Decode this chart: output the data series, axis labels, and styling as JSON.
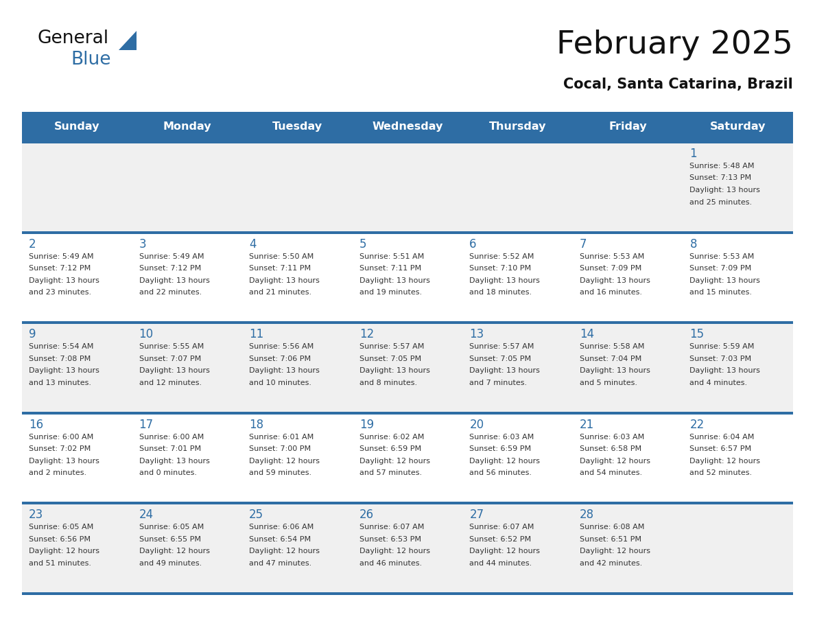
{
  "title": "February 2025",
  "subtitle": "Cocal, Santa Catarina, Brazil",
  "days_of_week": [
    "Sunday",
    "Monday",
    "Tuesday",
    "Wednesday",
    "Thursday",
    "Friday",
    "Saturday"
  ],
  "header_bg": "#2e6da4",
  "header_text_color": "#ffffff",
  "row_bg_odd": "#f0f0f0",
  "row_bg_even": "#ffffff",
  "separator_color": "#2e6da4",
  "day_number_color": "#2e6da4",
  "text_color": "#333333",
  "bg_color": "#ffffff",
  "calendar_data": [
    [
      {
        "day": null,
        "info": ""
      },
      {
        "day": null,
        "info": ""
      },
      {
        "day": null,
        "info": ""
      },
      {
        "day": null,
        "info": ""
      },
      {
        "day": null,
        "info": ""
      },
      {
        "day": null,
        "info": ""
      },
      {
        "day": 1,
        "info": "Sunrise: 5:48 AM\nSunset: 7:13 PM\nDaylight: 13 hours\nand 25 minutes."
      }
    ],
    [
      {
        "day": 2,
        "info": "Sunrise: 5:49 AM\nSunset: 7:12 PM\nDaylight: 13 hours\nand 23 minutes."
      },
      {
        "day": 3,
        "info": "Sunrise: 5:49 AM\nSunset: 7:12 PM\nDaylight: 13 hours\nand 22 minutes."
      },
      {
        "day": 4,
        "info": "Sunrise: 5:50 AM\nSunset: 7:11 PM\nDaylight: 13 hours\nand 21 minutes."
      },
      {
        "day": 5,
        "info": "Sunrise: 5:51 AM\nSunset: 7:11 PM\nDaylight: 13 hours\nand 19 minutes."
      },
      {
        "day": 6,
        "info": "Sunrise: 5:52 AM\nSunset: 7:10 PM\nDaylight: 13 hours\nand 18 minutes."
      },
      {
        "day": 7,
        "info": "Sunrise: 5:53 AM\nSunset: 7:09 PM\nDaylight: 13 hours\nand 16 minutes."
      },
      {
        "day": 8,
        "info": "Sunrise: 5:53 AM\nSunset: 7:09 PM\nDaylight: 13 hours\nand 15 minutes."
      }
    ],
    [
      {
        "day": 9,
        "info": "Sunrise: 5:54 AM\nSunset: 7:08 PM\nDaylight: 13 hours\nand 13 minutes."
      },
      {
        "day": 10,
        "info": "Sunrise: 5:55 AM\nSunset: 7:07 PM\nDaylight: 13 hours\nand 12 minutes."
      },
      {
        "day": 11,
        "info": "Sunrise: 5:56 AM\nSunset: 7:06 PM\nDaylight: 13 hours\nand 10 minutes."
      },
      {
        "day": 12,
        "info": "Sunrise: 5:57 AM\nSunset: 7:05 PM\nDaylight: 13 hours\nand 8 minutes."
      },
      {
        "day": 13,
        "info": "Sunrise: 5:57 AM\nSunset: 7:05 PM\nDaylight: 13 hours\nand 7 minutes."
      },
      {
        "day": 14,
        "info": "Sunrise: 5:58 AM\nSunset: 7:04 PM\nDaylight: 13 hours\nand 5 minutes."
      },
      {
        "day": 15,
        "info": "Sunrise: 5:59 AM\nSunset: 7:03 PM\nDaylight: 13 hours\nand 4 minutes."
      }
    ],
    [
      {
        "day": 16,
        "info": "Sunrise: 6:00 AM\nSunset: 7:02 PM\nDaylight: 13 hours\nand 2 minutes."
      },
      {
        "day": 17,
        "info": "Sunrise: 6:00 AM\nSunset: 7:01 PM\nDaylight: 13 hours\nand 0 minutes."
      },
      {
        "day": 18,
        "info": "Sunrise: 6:01 AM\nSunset: 7:00 PM\nDaylight: 12 hours\nand 59 minutes."
      },
      {
        "day": 19,
        "info": "Sunrise: 6:02 AM\nSunset: 6:59 PM\nDaylight: 12 hours\nand 57 minutes."
      },
      {
        "day": 20,
        "info": "Sunrise: 6:03 AM\nSunset: 6:59 PM\nDaylight: 12 hours\nand 56 minutes."
      },
      {
        "day": 21,
        "info": "Sunrise: 6:03 AM\nSunset: 6:58 PM\nDaylight: 12 hours\nand 54 minutes."
      },
      {
        "day": 22,
        "info": "Sunrise: 6:04 AM\nSunset: 6:57 PM\nDaylight: 12 hours\nand 52 minutes."
      }
    ],
    [
      {
        "day": 23,
        "info": "Sunrise: 6:05 AM\nSunset: 6:56 PM\nDaylight: 12 hours\nand 51 minutes."
      },
      {
        "day": 24,
        "info": "Sunrise: 6:05 AM\nSunset: 6:55 PM\nDaylight: 12 hours\nand 49 minutes."
      },
      {
        "day": 25,
        "info": "Sunrise: 6:06 AM\nSunset: 6:54 PM\nDaylight: 12 hours\nand 47 minutes."
      },
      {
        "day": 26,
        "info": "Sunrise: 6:07 AM\nSunset: 6:53 PM\nDaylight: 12 hours\nand 46 minutes."
      },
      {
        "day": 27,
        "info": "Sunrise: 6:07 AM\nSunset: 6:52 PM\nDaylight: 12 hours\nand 44 minutes."
      },
      {
        "day": 28,
        "info": "Sunrise: 6:08 AM\nSunset: 6:51 PM\nDaylight: 12 hours\nand 42 minutes."
      },
      {
        "day": null,
        "info": ""
      }
    ]
  ]
}
